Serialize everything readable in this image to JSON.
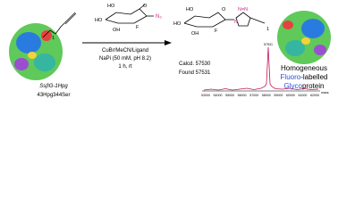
{
  "left_protein": {
    "name": "SsβG-1Hpg",
    "mutation": "43Hpg344Ser",
    "label": "1"
  },
  "reagent": {
    "atoms": [
      "HO",
      "HO",
      "OH",
      "F",
      "N₃",
      "O"
    ]
  },
  "conditions": [
    "CuBr/MeCN/Ligand",
    "NaPi (50 mM, pH 8.2)",
    "1 h, rt"
  ],
  "product": {
    "atoms": [
      "HO",
      "HO",
      "OH",
      "F",
      "O",
      "N",
      "N=N"
    ],
    "label": "1"
  },
  "mass_spec": {
    "calcd": "Calcd. 57530",
    "found": "Found 57531",
    "peak_label": "57531",
    "ticks": [
      "53000",
      "54000",
      "55000",
      "56000",
      "57000",
      "58000",
      "59000",
      "60000",
      "61000",
      "62000"
    ],
    "axis_label": "mass"
  },
  "caption": {
    "line1": "Homogeneous",
    "line2": [
      "Fluoro",
      "-labelled"
    ],
    "line3": [
      "Glyco",
      "protein"
    ]
  }
}
